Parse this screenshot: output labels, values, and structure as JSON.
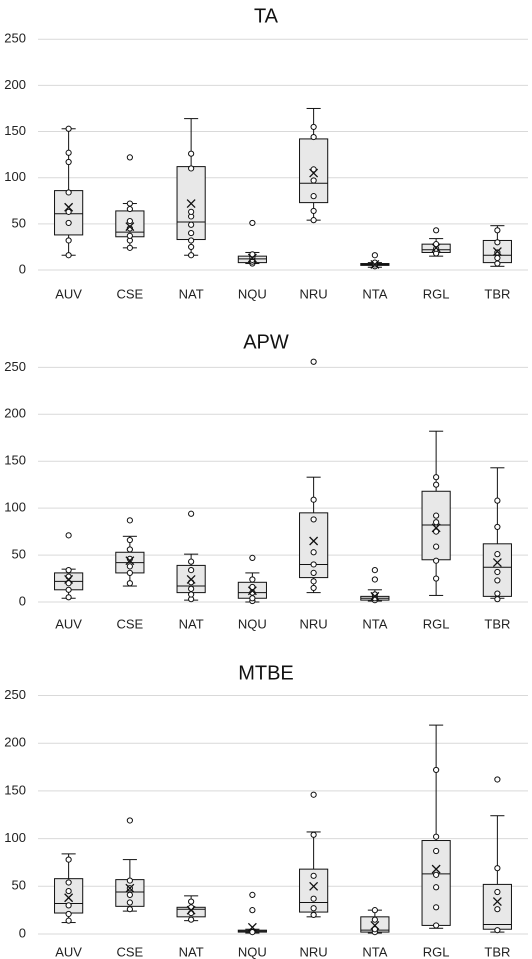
{
  "chart_data": [
    {
      "type": "box",
      "title": "TA",
      "ylim": [
        0,
        260
      ],
      "yticks": [
        0,
        50,
        100,
        150,
        200,
        250
      ],
      "grid": true,
      "categories": [
        "AUV",
        "CSE",
        "NAT",
        "NQU",
        "NRU",
        "NTA",
        "RGL",
        "TBR"
      ],
      "boxes": [
        {
          "category": "AUV",
          "min": 16,
          "q1": 38,
          "median": 61,
          "q3": 86,
          "max": 153,
          "mean": 68,
          "points": [
            16,
            32,
            51,
            63,
            84,
            117,
            127,
            153
          ]
        },
        {
          "category": "CSE",
          "min": 24,
          "q1": 36,
          "median": 41,
          "q3": 64,
          "max": 72,
          "mean": 47,
          "points": [
            24,
            32,
            37,
            45,
            53,
            66,
            72,
            122
          ]
        },
        {
          "category": "NAT",
          "min": 16,
          "q1": 33,
          "median": 52,
          "q3": 112,
          "max": 164,
          "mean": 72,
          "points": [
            16,
            25,
            32,
            40,
            49,
            58,
            63,
            110,
            126
          ]
        },
        {
          "category": "NQU",
          "min": 7,
          "q1": 8,
          "median": 12,
          "q3": 15,
          "max": 19,
          "mean": 13,
          "points": [
            7,
            9,
            11,
            14,
            17,
            51
          ]
        },
        {
          "category": "NRU",
          "min": 54,
          "q1": 73,
          "median": 94,
          "q3": 142,
          "max": 175,
          "mean": 105,
          "points": [
            54,
            64,
            80,
            97,
            109,
            144,
            155
          ]
        },
        {
          "category": "NTA",
          "min": 3,
          "q1": 5,
          "median": 6,
          "q3": 7,
          "max": 8,
          "mean": 6,
          "points": [
            4,
            6,
            8,
            16
          ]
        },
        {
          "category": "RGL",
          "min": 15,
          "q1": 19,
          "median": 22,
          "q3": 28,
          "max": 34,
          "mean": 24,
          "points": [
            18,
            23,
            28,
            43
          ]
        },
        {
          "category": "TBR",
          "min": 4,
          "q1": 8,
          "median": 16,
          "q3": 32,
          "max": 48,
          "mean": 20,
          "points": [
            7,
            13,
            19,
            30,
            43
          ]
        }
      ]
    },
    {
      "type": "box",
      "title": "APW",
      "ylim": [
        0,
        260
      ],
      "yticks": [
        0,
        50,
        100,
        150,
        200,
        250
      ],
      "grid": true,
      "categories": [
        "AUV",
        "CSE",
        "NAT",
        "NQU",
        "NRU",
        "NTA",
        "RGL",
        "TBR"
      ],
      "boxes": [
        {
          "category": "AUV",
          "min": 4,
          "q1": 13,
          "median": 22,
          "q3": 31,
          "max": 35,
          "mean": 24,
          "points": [
            5,
            13,
            20,
            27,
            34,
            71
          ]
        },
        {
          "category": "CSE",
          "min": 17,
          "q1": 31,
          "median": 42,
          "q3": 53,
          "max": 70,
          "mean": 44,
          "points": [
            20,
            31,
            38,
            46,
            56,
            66,
            87
          ]
        },
        {
          "category": "NAT",
          "min": 2,
          "q1": 10,
          "median": 17,
          "q3": 39,
          "max": 51,
          "mean": 24,
          "points": [
            3,
            8,
            14,
            21,
            34,
            43,
            94
          ]
        },
        {
          "category": "NQU",
          "min": 0,
          "q1": 4,
          "median": 10,
          "q3": 21,
          "max": 31,
          "mean": 12,
          "points": [
            1,
            4,
            10,
            16,
            24,
            47
          ]
        },
        {
          "category": "NRU",
          "min": 10,
          "q1": 26,
          "median": 40,
          "q3": 95,
          "max": 133,
          "mean": 65,
          "points": [
            15,
            22,
            31,
            40,
            53,
            88,
            109,
            256
          ]
        },
        {
          "category": "NTA",
          "min": 1,
          "q1": 2,
          "median": 4,
          "q3": 6,
          "max": 13,
          "mean": 6,
          "points": [
            2,
            4,
            8,
            24,
            34
          ]
        },
        {
          "category": "RGL",
          "min": 7,
          "q1": 45,
          "median": 82,
          "q3": 118,
          "max": 182,
          "mean": 79,
          "points": [
            25,
            44,
            59,
            75,
            85,
            92,
            125,
            133
          ]
        },
        {
          "category": "TBR",
          "min": 4,
          "q1": 6,
          "median": 37,
          "q3": 62,
          "max": 143,
          "mean": 42,
          "points": [
            3,
            9,
            23,
            32,
            51,
            80,
            108
          ]
        }
      ]
    },
    {
      "type": "box",
      "title": "MTBE",
      "ylim": [
        0,
        260
      ],
      "yticks": [
        0,
        50,
        100,
        150,
        200,
        250
      ],
      "grid": true,
      "categories": [
        "AUV",
        "CSE",
        "NAT",
        "NQU",
        "NRU",
        "NTA",
        "RGL",
        "TBR"
      ],
      "boxes": [
        {
          "category": "AUV",
          "min": 12,
          "q1": 22,
          "median": 32,
          "q3": 58,
          "max": 84,
          "mean": 38,
          "points": [
            14,
            21,
            30,
            45,
            54,
            78
          ]
        },
        {
          "category": "CSE",
          "min": 24,
          "q1": 29,
          "median": 44,
          "q3": 57,
          "max": 78,
          "mean": 48,
          "points": [
            26,
            33,
            41,
            48,
            56,
            119
          ]
        },
        {
          "category": "NAT",
          "min": 14,
          "q1": 18,
          "median": 26,
          "q3": 28,
          "max": 40,
          "mean": 25,
          "points": [
            15,
            22,
            28,
            34
          ]
        },
        {
          "category": "NQU",
          "min": 1,
          "q1": 2,
          "median": 3,
          "q3": 4,
          "max": 5,
          "mean": 7,
          "points": [
            2,
            25,
            41
          ]
        },
        {
          "category": "NRU",
          "min": 18,
          "q1": 23,
          "median": 33,
          "q3": 68,
          "max": 107,
          "mean": 50,
          "points": [
            20,
            27,
            37,
            61,
            104,
            146
          ]
        },
        {
          "category": "NTA",
          "min": 1,
          "q1": 2,
          "median": 4,
          "q3": 18,
          "max": 25,
          "mean": 9,
          "points": [
            2,
            5,
            15,
            25
          ]
        },
        {
          "category": "RGL",
          "min": 6,
          "q1": 9,
          "median": 63,
          "q3": 98,
          "max": 219,
          "mean": 68,
          "points": [
            9,
            28,
            49,
            62,
            87,
            102,
            172
          ]
        },
        {
          "category": "TBR",
          "min": 2,
          "q1": 5,
          "median": 10,
          "q3": 52,
          "max": 124,
          "mean": 34,
          "points": [
            4,
            26,
            44,
            69,
            162
          ]
        }
      ]
    }
  ]
}
